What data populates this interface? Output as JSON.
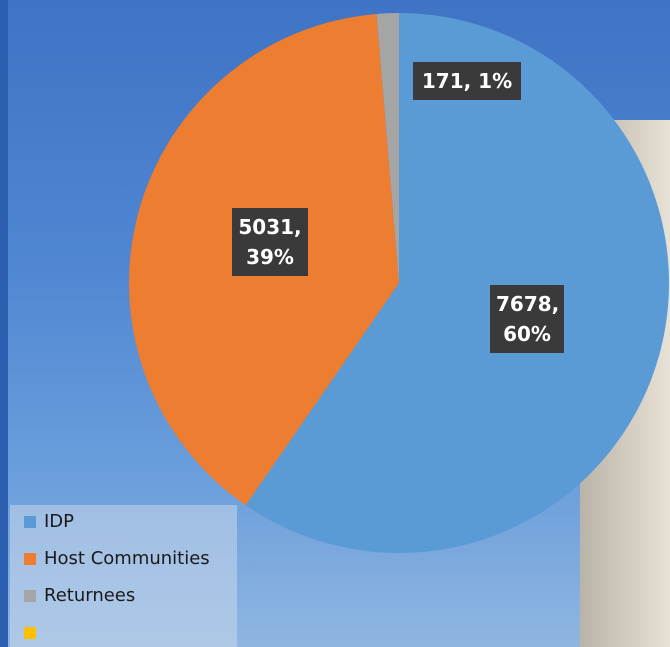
{
  "chart_data": {
    "type": "pie",
    "categories": [
      "IDP",
      "Host Communities",
      "Returnees",
      null
    ],
    "values": [
      7678,
      5031,
      171,
      null
    ],
    "value_labels": [
      "7678, 60%",
      "5031, 39%",
      "171, 1%",
      null
    ],
    "colors": [
      "#5b9bd5",
      "#ed7d31",
      "#a5a5a5",
      "#ffc000"
    ],
    "legend": "bottom-left"
  }
}
